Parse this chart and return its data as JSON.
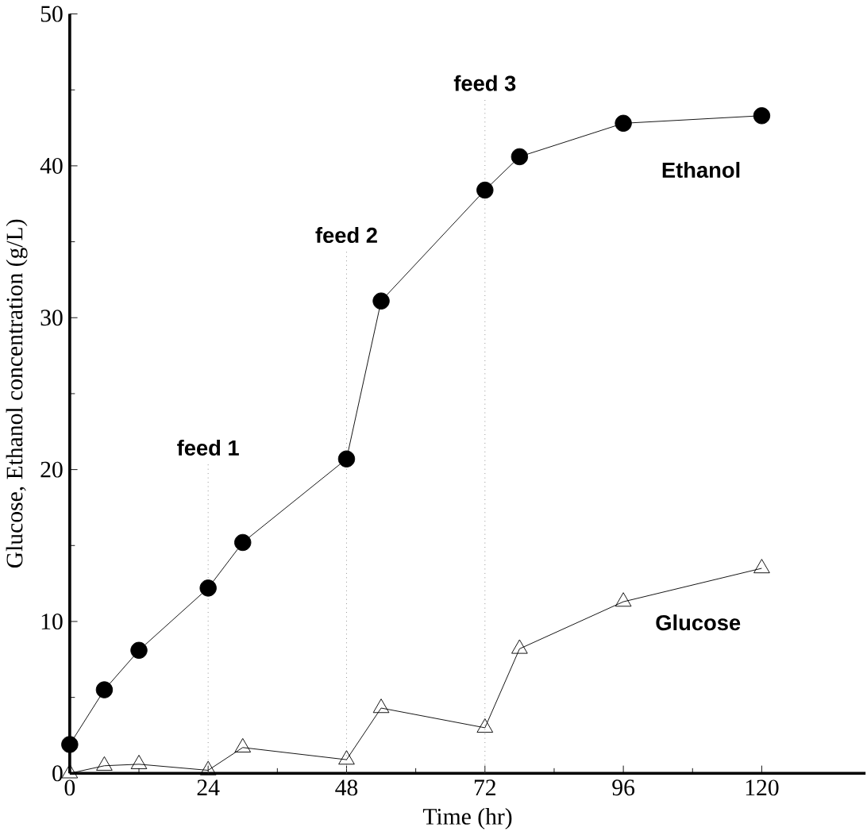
{
  "chart_data": {
    "type": "line",
    "xlabel": "Time (hr)",
    "ylabel": "Glucose, Ethanol concentration (g/L)",
    "x": [
      0,
      6,
      12,
      24,
      30,
      48,
      54,
      72,
      78,
      96,
      120
    ],
    "series": [
      {
        "name": "Ethanol",
        "color": "#000000",
        "marker": "circle",
        "values": [
          1.9,
          5.5,
          8.1,
          12.2,
          15.2,
          20.7,
          31.1,
          38.4,
          40.6,
          42.8,
          43.3
        ]
      },
      {
        "name": "Glucose",
        "color": "#000000",
        "marker": "triangle",
        "values": [
          0,
          0.5,
          0.6,
          0.2,
          1.7,
          0.9,
          4.3,
          3.0,
          8.2,
          11.3,
          13.5
        ]
      }
    ],
    "xlim": [
      0,
      138
    ],
    "ylim": [
      0,
      50
    ],
    "xticks": [
      0,
      24,
      48,
      72,
      96,
      120
    ],
    "yticks": [
      0,
      10,
      20,
      30,
      40,
      50
    ],
    "ref_lines": [
      {
        "axis": "x",
        "value": 24,
        "label": "feed 1",
        "line_style": "dotted"
      },
      {
        "axis": "x",
        "value": 48,
        "label": "feed 2",
        "line_style": "dotted"
      },
      {
        "axis": "x",
        "value": 72,
        "label": "feed 3",
        "line_style": "dotted"
      }
    ],
    "grid": false,
    "line_style": "solid"
  }
}
